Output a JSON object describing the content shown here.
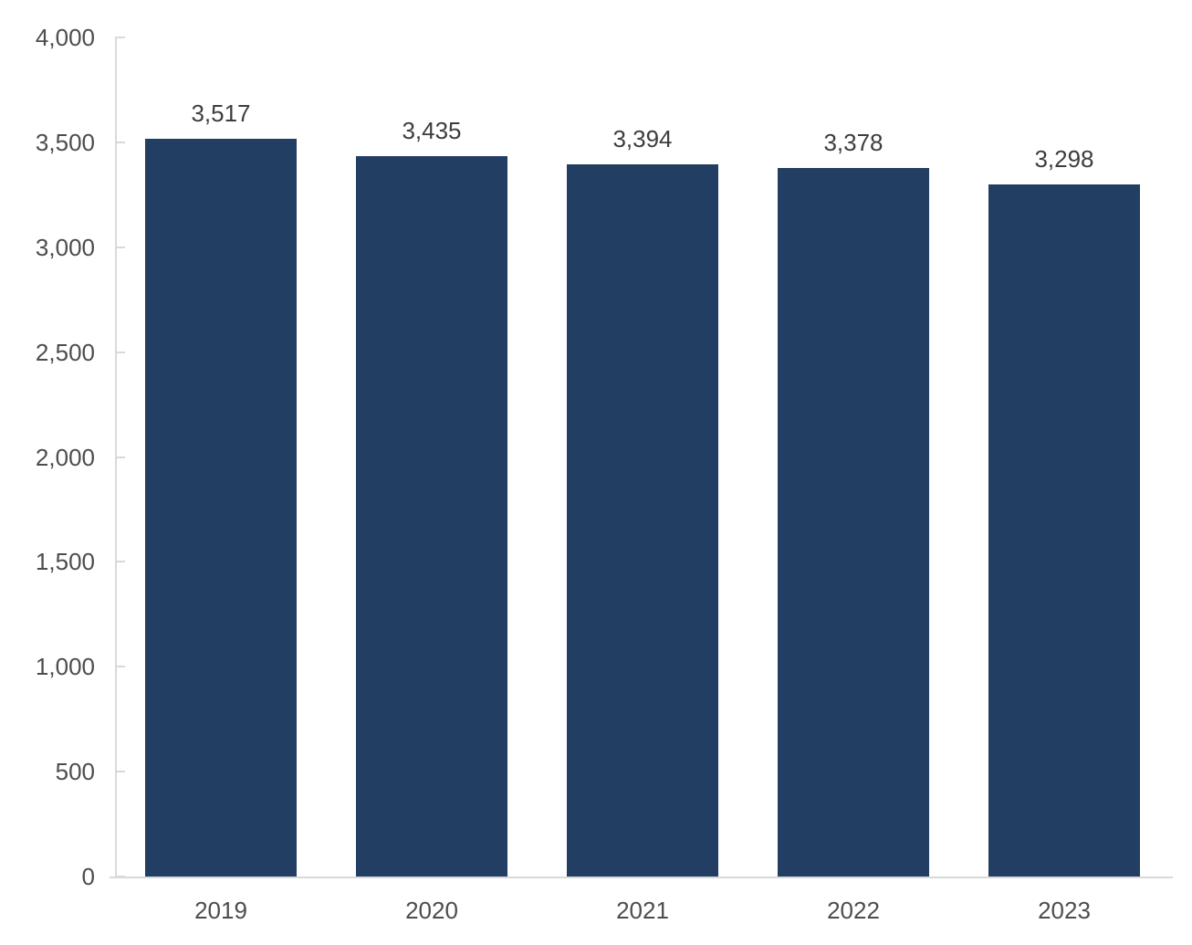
{
  "chart_data": {
    "type": "bar",
    "title": "",
    "xlabel": "",
    "ylabel": "",
    "categories": [
      "2019",
      "2020",
      "2021",
      "2022",
      "2023"
    ],
    "values": [
      3517,
      3435,
      3394,
      3378,
      3298
    ],
    "data_labels": [
      "3,517",
      "3,435",
      "3,394",
      "3,378",
      "3,298"
    ],
    "ylim": [
      0,
      4000
    ],
    "ytick_step": 500,
    "ytick_labels": [
      "0",
      "500",
      "1,000",
      "1,500",
      "2,000",
      "2,500",
      "3,000",
      "3,500",
      "4,000"
    ],
    "grid": false,
    "legend": false,
    "colors": {
      "bar": "#233e63",
      "axis": "#d9d9d9",
      "tick_label": "#4d4d4d",
      "data_label": "#3d3d3d",
      "background": "#ffffff"
    }
  }
}
